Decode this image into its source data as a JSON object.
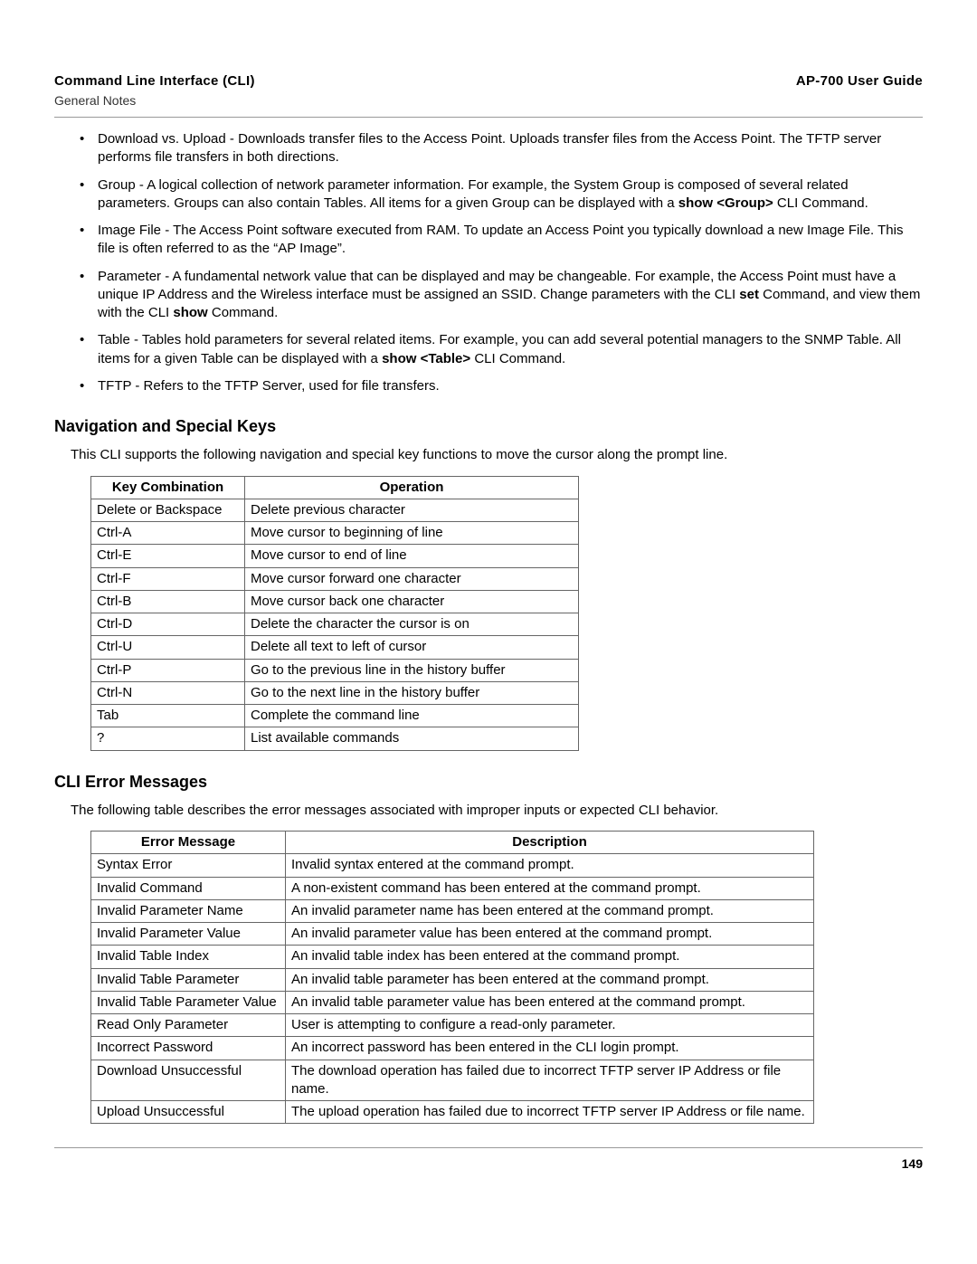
{
  "header": {
    "title": "Command Line Interface (CLI)",
    "subtitle": "General Notes",
    "guide": "AP-700 User Guide"
  },
  "bullets": [
    {
      "parts": [
        {
          "t": "Download vs. Upload - Downloads transfer files to the Access Point. Uploads transfer files from the Access Point. The TFTP server performs file transfers in both directions."
        }
      ]
    },
    {
      "parts": [
        {
          "t": "Group - A logical collection of network parameter information. For example, the System Group is composed of several related parameters. Groups can also contain Tables. All items for a given Group can be displayed with a "
        },
        {
          "t": "show <Group>",
          "b": true
        },
        {
          "t": " CLI Command."
        }
      ]
    },
    {
      "parts": [
        {
          "t": "Image File - The Access Point software executed from RAM. To update an Access Point you typically download a new Image File. This file is often referred to as the “AP Image”."
        }
      ]
    },
    {
      "parts": [
        {
          "t": "Parameter - A fundamental network value that can be displayed and may be changeable. For example, the Access Point must have a unique IP Address and the Wireless interface must be assigned an SSID. Change parameters with the CLI "
        },
        {
          "t": "set",
          "b": true
        },
        {
          "t": " Command, and view them with the CLI "
        },
        {
          "t": "show",
          "b": true
        },
        {
          "t": " Command."
        }
      ]
    },
    {
      "parts": [
        {
          "t": "Table - Tables hold parameters for several related items. For example, you can add several potential managers to the SNMP Table. All items for a given Table can be displayed with a "
        },
        {
          "t": "show <Table>",
          "b": true
        },
        {
          "t": " CLI Command."
        }
      ]
    },
    {
      "parts": [
        {
          "t": "TFTP - Refers to the TFTP Server, used for file transfers."
        }
      ]
    }
  ],
  "nav": {
    "heading": "Navigation and Special Keys",
    "intro": "This CLI supports the following navigation and special key functions to move the cursor along the prompt line.",
    "columns": [
      "Key Combination",
      "Operation"
    ],
    "rows": [
      [
        "Delete or Backspace",
        "Delete previous character"
      ],
      [
        "Ctrl-A",
        "Move cursor to beginning of line"
      ],
      [
        "Ctrl-E",
        "Move cursor to end of line"
      ],
      [
        "Ctrl-F",
        "Move cursor forward one character"
      ],
      [
        "Ctrl-B",
        "Move cursor back one character"
      ],
      [
        "Ctrl-D",
        "Delete the character the cursor is on"
      ],
      [
        "Ctrl-U",
        "Delete all text to left of cursor"
      ],
      [
        "Ctrl-P",
        "Go to the previous line in the history buffer"
      ],
      [
        "Ctrl-N",
        "Go to the next line in the history buffer"
      ],
      [
        "Tab",
        "Complete the command line"
      ],
      [
        "?",
        "List available commands"
      ]
    ]
  },
  "err": {
    "heading": "CLI Error Messages",
    "intro": "The following table describes the error messages associated with improper inputs or expected CLI behavior.",
    "columns": [
      "Error Message",
      "Description"
    ],
    "rows": [
      [
        "Syntax Error",
        "Invalid syntax entered at the command prompt."
      ],
      [
        "Invalid Command",
        "A non-existent command has been entered at the command prompt."
      ],
      [
        "Invalid Parameter Name",
        "An invalid parameter name has been entered at the command prompt."
      ],
      [
        "Invalid Parameter Value",
        "An invalid parameter value has been entered at the command prompt."
      ],
      [
        "Invalid Table Index",
        "An invalid table index has been entered at the command prompt."
      ],
      [
        "Invalid Table Parameter",
        "An invalid table parameter has been entered at the command prompt."
      ],
      [
        "Invalid Table Parameter Value",
        "An invalid table parameter value has been entered at the command prompt."
      ],
      [
        "Read Only Parameter",
        "User is attempting to configure a read-only parameter."
      ],
      [
        "Incorrect Password",
        "An incorrect password has been entered in the CLI login prompt."
      ],
      [
        "Download Unsuccessful",
        "The download operation has failed due to incorrect TFTP server IP Address or file name."
      ],
      [
        "Upload Unsuccessful",
        "The upload operation has failed due to incorrect TFTP server IP Address or file name."
      ]
    ]
  },
  "page_number": "149"
}
